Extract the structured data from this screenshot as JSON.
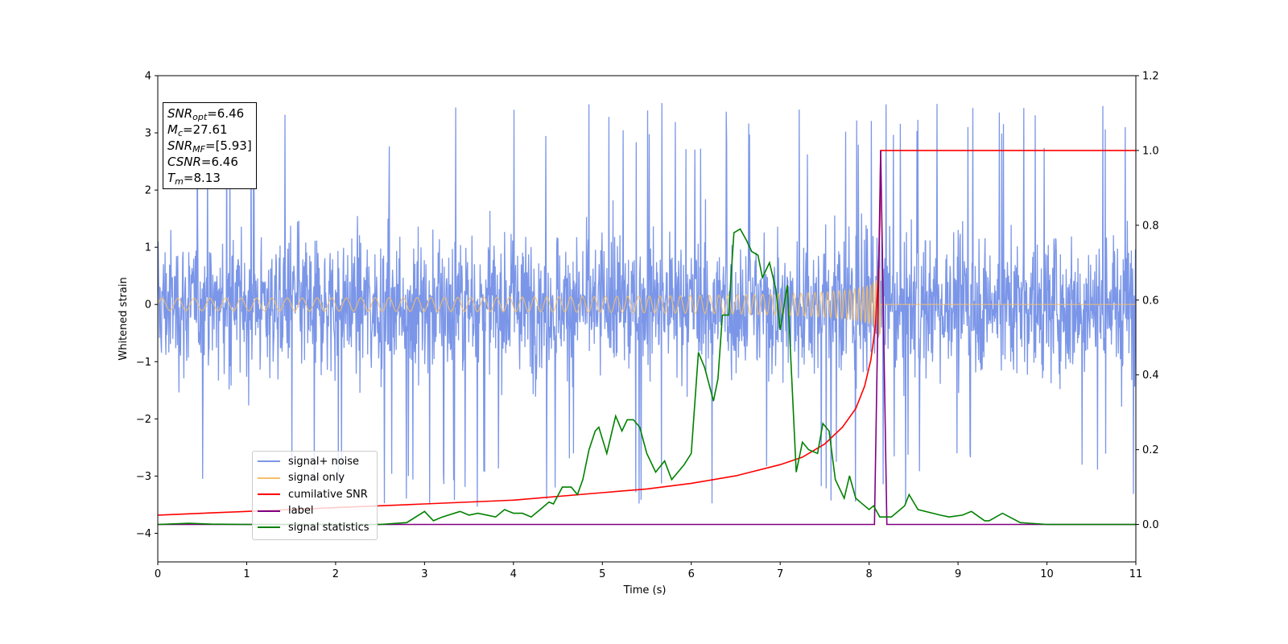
{
  "colors": {
    "signal_noise": "#7b96e8",
    "signal_only": "#f5c06a",
    "cumulative_snr": "#ff0000",
    "label": "#800080",
    "signal_statistics": "#008000"
  },
  "stats_box": {
    "snr_opt": {
      "name": "SNR",
      "sub": "opt",
      "value": "=6.46"
    },
    "mc": {
      "name": "M",
      "sub": "c",
      "value": "=27.61"
    },
    "snr_mf": {
      "name": "SNR",
      "sub": "MF",
      "value": "=[5.93]"
    },
    "csnr": {
      "name": "CSNR",
      "value": "=6.46"
    },
    "tm": {
      "name": "T",
      "sub": "m",
      "value": "=8.13"
    }
  },
  "legend": [
    {
      "label": "signal+ noise",
      "color_key": "signal_noise"
    },
    {
      "label": "signal only",
      "color_key": "signal_only"
    },
    {
      "label": "cumilative SNR",
      "color_key": "cumulative_snr"
    },
    {
      "label": "label",
      "color_key": "label"
    },
    {
      "label": "signal statistics",
      "color_key": "signal_statistics"
    }
  ],
  "chart_data": {
    "type": "line",
    "xlabel": "Time (s)",
    "ylabel": "Whitened strain",
    "xlim": [
      0,
      11
    ],
    "ylim_left": [
      -4.5,
      4.0
    ],
    "ylim_right": [
      -0.1,
      1.2
    ],
    "x_ticks": [
      "0",
      "1",
      "2",
      "3",
      "4",
      "5",
      "6",
      "7",
      "8",
      "9",
      "10",
      "11"
    ],
    "y_ticks_left": [
      "4",
      "3",
      "2",
      "1",
      "0",
      "−1",
      "−2",
      "−3",
      "−4"
    ],
    "y_ticks_right": [
      "1.2",
      "1.0",
      "0.8",
      "0.6",
      "0.4",
      "0.2",
      "0.0"
    ],
    "series": [
      {
        "name": "signal+ noise",
        "axis": "left",
        "description_values": {
          "typical_range": [
            -2.5,
            2.5
          ],
          "max": 3.62,
          "min": -4.15
        }
      },
      {
        "name": "signal only",
        "axis": "left",
        "chirp_end_time": 8.13,
        "peak_amplitude": 0.7
      },
      {
        "name": "cumilative SNR",
        "axis": "right",
        "x": [
          0,
          1,
          2,
          3,
          4,
          5,
          5.5,
          6,
          6.5,
          7,
          7.25,
          7.5,
          7.7,
          7.85,
          7.95,
          8.02,
          8.07,
          8.1,
          8.12,
          8.13,
          11
        ],
        "y": [
          0.025,
          0.035,
          0.045,
          0.055,
          0.065,
          0.085,
          0.095,
          0.11,
          0.13,
          0.16,
          0.18,
          0.215,
          0.26,
          0.31,
          0.37,
          0.44,
          0.53,
          0.65,
          0.8,
          1.0,
          1.0
        ]
      },
      {
        "name": "label",
        "axis": "right",
        "x": [
          0,
          8.06,
          8.13,
          8.2,
          11
        ],
        "y": [
          0,
          0,
          1.0,
          0,
          0
        ]
      },
      {
        "name": "signal statistics",
        "axis": "right",
        "x": [
          0,
          0.35,
          0.6,
          1,
          2,
          2.5,
          2.8,
          3.0,
          3.1,
          3.2,
          3.4,
          3.5,
          3.6,
          3.8,
          3.9,
          4.0,
          4.1,
          4.2,
          4.3,
          4.4,
          4.45,
          4.55,
          4.65,
          4.72,
          4.78,
          4.85,
          4.92,
          4.96,
          5.05,
          5.15,
          5.22,
          5.28,
          5.35,
          5.42,
          5.5,
          5.6,
          5.7,
          5.78,
          5.85,
          5.92,
          6.0,
          6.08,
          6.15,
          6.25,
          6.3,
          6.35,
          6.42,
          6.48,
          6.55,
          6.62,
          6.68,
          6.75,
          6.8,
          6.88,
          6.95,
          7.0,
          7.08,
          7.18,
          7.25,
          7.32,
          7.42,
          7.48,
          7.55,
          7.62,
          7.72,
          7.78,
          7.85,
          7.9,
          8.0,
          8.05,
          8.12,
          8.18,
          8.25,
          8.4,
          8.45,
          8.55,
          8.8,
          8.9,
          9.05,
          9.15,
          9.3,
          9.35,
          9.5,
          9.7,
          10,
          10.5,
          11
        ],
        "y": [
          0.0,
          0.003,
          0.001,
          0.0,
          0.0,
          0.0,
          0.005,
          0.035,
          0.01,
          0.02,
          0.035,
          0.025,
          0.03,
          0.02,
          0.04,
          0.03,
          0.03,
          0.02,
          0.04,
          0.06,
          0.055,
          0.1,
          0.1,
          0.08,
          0.12,
          0.2,
          0.25,
          0.26,
          0.19,
          0.29,
          0.25,
          0.28,
          0.28,
          0.26,
          0.19,
          0.14,
          0.17,
          0.12,
          0.14,
          0.16,
          0.19,
          0.46,
          0.42,
          0.33,
          0.39,
          0.56,
          0.56,
          0.78,
          0.79,
          0.76,
          0.73,
          0.72,
          0.66,
          0.7,
          0.63,
          0.52,
          0.64,
          0.14,
          0.22,
          0.2,
          0.19,
          0.27,
          0.25,
          0.12,
          0.07,
          0.13,
          0.07,
          0.06,
          0.04,
          0.05,
          0.02,
          0.02,
          0.02,
          0.05,
          0.08,
          0.04,
          0.025,
          0.02,
          0.025,
          0.035,
          0.01,
          0.01,
          0.03,
          0.005,
          0.0,
          0.0,
          0.0
        ]
      }
    ]
  }
}
